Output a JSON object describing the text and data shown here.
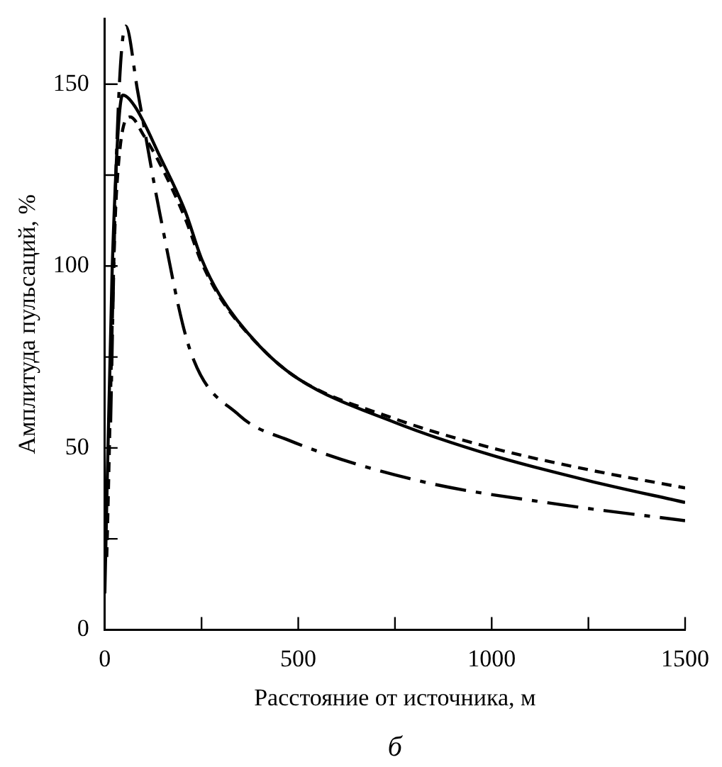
{
  "chart_data": {
    "type": "line",
    "xlabel": "Расстояние от источника, м",
    "ylabel": "Амплитуда пульсаций, %",
    "annotations": [
      "б"
    ],
    "xlim": [
      0,
      1500
    ],
    "xticks": [
      0,
      {
        "value": 250,
        "label": null
      },
      500,
      {
        "value": 750,
        "label": null
      },
      1000,
      {
        "value": 1250,
        "label": null
      },
      1500
    ],
    "ylim": [
      0,
      168
    ],
    "yticks": [
      0,
      {
        "value": 25,
        "label": null
      },
      50,
      {
        "value": 75,
        "label": null
      },
      100,
      {
        "value": 125,
        "label": null
      },
      150
    ],
    "marker": "none",
    "series": [
      {
        "color": "#000000",
        "line_style": "solid",
        "x": [
          0,
          19,
          46,
          77,
          143,
          208,
          250,
          297,
          400,
          500,
          750,
          1000,
          1250,
          1500
        ],
        "values": [
          10,
          99,
          147,
          144,
          130,
          115,
          102,
          92,
          78,
          69,
          57,
          48,
          41,
          35
        ]
      },
      {
        "color": "#000000",
        "line_style": "dashed",
        "x": [
          5,
          30,
          66,
          100,
          143,
          208,
          250,
          300,
          400,
          500,
          750,
          1000,
          1250,
          1500
        ],
        "values": [
          20,
          120,
          141,
          136,
          128,
          113,
          101,
          91,
          78,
          69,
          58,
          50,
          44,
          39
        ]
      },
      {
        "color": "#000000",
        "line_style": "dashdot",
        "x": [
          15,
          30,
          54,
          85,
          143,
          220,
          347,
          478,
          810,
          1172,
          1500
        ],
        "values": [
          57,
          130,
          166,
          148,
          114,
          77,
          59,
          52,
          41,
          34.5,
          30
        ]
      }
    ]
  }
}
